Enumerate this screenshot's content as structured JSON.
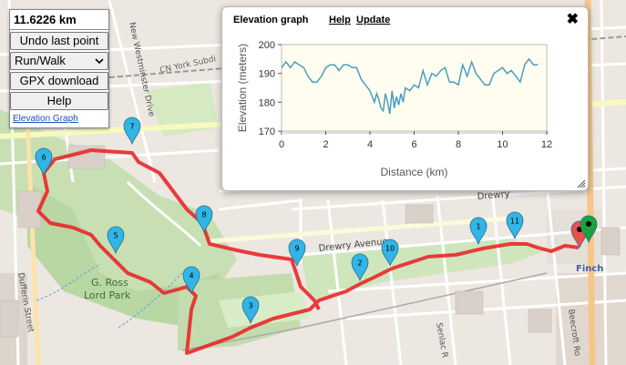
{
  "panel": {
    "distance": "11.6226 km",
    "undo_label": "Undo last point",
    "mode_value": "Run/Walk",
    "gpx_label": "GPX download",
    "help_label": "Help",
    "elevation_link": "Elevation Graph"
  },
  "elevation_window": {
    "title": "Elevation graph",
    "help_link": "Help",
    "update_link": "Update",
    "close_glyph": "✖"
  },
  "map": {
    "labels": {
      "new_westminster": "New Westminster Drive",
      "cn_york": "CN York Subdi",
      "drewry_avenue": "Drewry Avenue",
      "drewry_short": "Drewry",
      "park": "G. Ross Lord Park",
      "dufferin": "Dufferin Street",
      "senlac": "Senlac R",
      "beecroft": "Beecroft Ro",
      "finch": "Finch"
    },
    "markers": [
      "1",
      "2",
      "3",
      "4",
      "5",
      "6",
      "7",
      "8",
      "9",
      "10",
      "11"
    ],
    "colors": {
      "route": "#e8282a",
      "marker": "#31b4e6",
      "start_marker": "#1aa33a",
      "end_marker": "#e8514a"
    }
  },
  "chart_data": {
    "type": "line",
    "xlabel": "Distance (km)",
    "ylabel": "Elevation (meters)",
    "xlim": [
      0,
      12
    ],
    "ylim": [
      170,
      200
    ],
    "xticks": [
      0,
      2,
      4,
      6,
      8,
      10,
      12
    ],
    "yticks": [
      170,
      180,
      190,
      200
    ],
    "line_color": "#4a9fbf",
    "x": [
      0,
      0.2,
      0.4,
      0.6,
      0.8,
      1.0,
      1.2,
      1.4,
      1.6,
      1.8,
      2.0,
      2.2,
      2.4,
      2.6,
      2.8,
      3.0,
      3.2,
      3.4,
      3.6,
      3.8,
      4.0,
      4.1,
      4.2,
      4.3,
      4.4,
      4.5,
      4.6,
      4.7,
      4.8,
      4.9,
      5.0,
      5.1,
      5.2,
      5.3,
      5.4,
      5.5,
      5.6,
      5.8,
      6.0,
      6.2,
      6.4,
      6.6,
      6.8,
      7.0,
      7.2,
      7.4,
      7.6,
      7.8,
      8.0,
      8.2,
      8.4,
      8.6,
      8.8,
      9.0,
      9.2,
      9.4,
      9.6,
      9.8,
      10.0,
      10.2,
      10.4,
      10.6,
      10.8,
      11.0,
      11.2,
      11.4,
      11.6
    ],
    "y": [
      192,
      194,
      192,
      194,
      193,
      192,
      189,
      187,
      187,
      189,
      192,
      193,
      193,
      191,
      193,
      193,
      192,
      192,
      188,
      186,
      184,
      182,
      180,
      183,
      181,
      178,
      177,
      183,
      180,
      176,
      184,
      178,
      182,
      179,
      183,
      180,
      185,
      184,
      186,
      185,
      191,
      186,
      190,
      189,
      191,
      192,
      187,
      187,
      186,
      193,
      189,
      194,
      190,
      188,
      186,
      186,
      190,
      191,
      192,
      190,
      191,
      189,
      187,
      193,
      195,
      193,
      193
    ]
  }
}
